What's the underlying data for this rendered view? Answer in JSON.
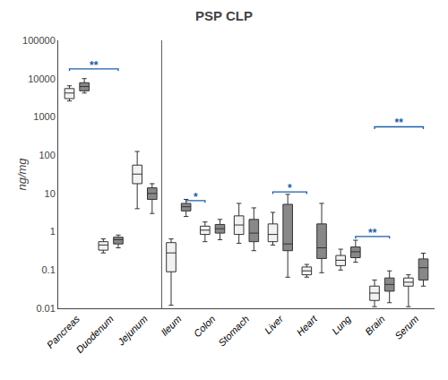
{
  "chart_data": {
    "type": "box",
    "title": "PSP CLP",
    "y_label": "ng/mg",
    "categories": [
      "Pancreas",
      "Duodenum",
      "Jejunum",
      "Ileum",
      "Colon",
      "Stomach",
      "Liver",
      "Heart",
      "Lung",
      "Brain",
      "Serum"
    ],
    "series": [
      {
        "color": "#f2f2f2",
        "values": [
          {
            "q1": 3000,
            "median": 4200,
            "q3": 5500,
            "whislo": 2600,
            "whishi": 6500
          },
          {
            "q1": 0.33,
            "median": 0.45,
            "q3": 0.55,
            "whislo": 0.28,
            "whishi": 0.65
          },
          {
            "q1": 18,
            "median": 32,
            "q3": 55,
            "whislo": 4,
            "whishi": 125
          },
          {
            "q1": 0.09,
            "median": 0.28,
            "q3": 0.52,
            "whislo": 0.012,
            "whishi": 0.65
          },
          {
            "q1": 0.85,
            "median": 1.1,
            "q3": 1.4,
            "whislo": 0.55,
            "whishi": 1.8
          },
          {
            "q1": 0.85,
            "median": 1.5,
            "q3": 2.6,
            "whislo": 0.5,
            "whishi": 5.5
          },
          {
            "q1": 0.55,
            "median": 0.85,
            "q3": 1.6,
            "whislo": 0.45,
            "whishi": 3.2
          },
          {
            "q1": 0.075,
            "median": 0.095,
            "q3": 0.12,
            "whislo": 0.065,
            "whishi": 0.14
          },
          {
            "q1": 0.13,
            "median": 0.18,
            "q3": 0.24,
            "whislo": 0.1,
            "whishi": 0.35
          },
          {
            "q1": 0.016,
            "median": 0.025,
            "q3": 0.038,
            "whislo": 0.011,
            "whishi": 0.055
          },
          {
            "q1": 0.038,
            "median": 0.048,
            "q3": 0.062,
            "whislo": 0.011,
            "whishi": 0.075
          }
        ]
      },
      {
        "color": "#888888",
        "values": [
          {
            "q1": 4800,
            "median": 6200,
            "q3": 7800,
            "whislo": 4200,
            "whishi": 10000
          },
          {
            "q1": 0.48,
            "median": 0.62,
            "q3": 0.72,
            "whislo": 0.38,
            "whishi": 0.82
          },
          {
            "q1": 7,
            "median": 10,
            "q3": 14,
            "whislo": 3,
            "whishi": 18
          },
          {
            "q1": 3.5,
            "median": 4.5,
            "q3": 5.5,
            "whislo": 2.5,
            "whishi": 7.0
          },
          {
            "q1": 0.92,
            "median": 1.2,
            "q3": 1.55,
            "whislo": 0.62,
            "whishi": 2.1
          },
          {
            "q1": 0.55,
            "median": 0.92,
            "q3": 2.1,
            "whislo": 0.32,
            "whishi": 4.2
          },
          {
            "q1": 0.32,
            "median": 0.48,
            "q3": 5.2,
            "whislo": 0.065,
            "whishi": 9.5
          },
          {
            "q1": 0.2,
            "median": 0.38,
            "q3": 1.6,
            "whislo": 0.085,
            "whishi": 5.5
          },
          {
            "q1": 0.21,
            "median": 0.3,
            "q3": 0.4,
            "whislo": 0.16,
            "whishi": 0.6
          },
          {
            "q1": 0.028,
            "median": 0.042,
            "q3": 0.062,
            "whislo": 0.014,
            "whishi": 0.095
          },
          {
            "q1": 0.055,
            "median": 0.115,
            "q3": 0.195,
            "whislo": 0.038,
            "whishi": 0.275
          }
        ]
      }
    ],
    "log": "y",
    "ylim": [
      0.01,
      100000
    ],
    "yticks": [
      0.01,
      0.1,
      1,
      10,
      100,
      1000,
      10000,
      100000
    ],
    "grid": false,
    "separator_after": "Jejunum",
    "annotations": [
      {
        "text": "**",
        "y": 18000,
        "color": "#1a5fa8",
        "from": {
          "category": "Pancreas",
          "series": 0
        },
        "to": {
          "category": "Duodenum",
          "series": 1
        }
      },
      {
        "text": "*",
        "y": 6.5,
        "color": "#1a5fa8",
        "from": {
          "category": "Ileum",
          "series": 1
        },
        "to": {
          "category": "Colon",
          "series": 0
        }
      },
      {
        "text": "*",
        "y": 11,
        "color": "#1a5fa8",
        "from": {
          "category": "Liver",
          "series": 0
        },
        "to": {
          "category": "Heart",
          "series": 0
        }
      },
      {
        "text": "**",
        "y": 0.75,
        "color": "#1a5fa8",
        "from": {
          "category": "Lung",
          "series": 1
        },
        "to": {
          "category": "Brain",
          "series": 1
        }
      },
      {
        "text": "**",
        "y": 550,
        "color": "#1a5fa8",
        "from": {
          "category": "Brain",
          "series": 0
        },
        "to": {
          "category": "Serum",
          "series": 1
        }
      }
    ]
  }
}
